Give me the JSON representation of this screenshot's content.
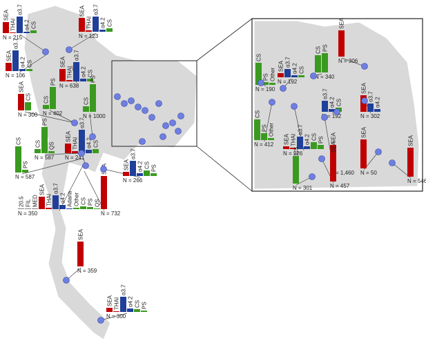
{
  "sites": [
    {
      "n": "N = 215",
      "bars": [
        {
          "label": "SEA",
          "value": 16,
          "color": "#c00000"
        },
        {
          "label": "THAI",
          "value": 1,
          "color": "#c00000"
        },
        {
          "label": "α3.7",
          "value": 24,
          "color": "#1f3f99"
        },
        {
          "label": "α4.2",
          "value": 2,
          "color": "#1f3f99"
        },
        {
          "label": "CS",
          "value": 4,
          "color": "#3a9a1f"
        }
      ]
    },
    {
      "n": "N = 123",
      "bars": [
        {
          "label": "SEA",
          "value": 20,
          "color": "#c00000"
        },
        {
          "label": "THAI",
          "value": 2,
          "color": "#c00000"
        },
        {
          "label": "α3.7",
          "value": 22,
          "color": "#1f3f99"
        },
        {
          "label": "α4.2",
          "value": 3,
          "color": "#1f3f99"
        },
        {
          "label": "CS",
          "value": 5,
          "color": "#3a9a1f"
        }
      ]
    },
    {
      "n": "N = 106",
      "bars": [
        {
          "label": "SEA",
          "value": 12,
          "color": "#c00000"
        },
        {
          "label": "α3.7",
          "value": 30,
          "color": "#1f3f99"
        },
        {
          "label": "α4.2",
          "value": 3,
          "color": "#1f3f99"
        },
        {
          "label": "CS",
          "value": 3,
          "color": "#3a9a1f"
        }
      ]
    },
    {
      "n": "N = 638",
      "bars": [
        {
          "label": "SEA",
          "value": 18,
          "color": "#c00000"
        },
        {
          "label": "THAI",
          "value": 2,
          "color": "#c00000"
        },
        {
          "label": "α3.7",
          "value": 28,
          "color": "#1f3f99"
        },
        {
          "label": "α4.2",
          "value": 4,
          "color": "#1f3f99"
        },
        {
          "label": "CS",
          "value": 4,
          "color": "#3a9a1f"
        }
      ]
    },
    {
      "n": "N = 402",
      "bars": [
        {
          "label": "CS",
          "value": 6,
          "color": "#3a9a1f"
        },
        {
          "label": "PS",
          "value": 32,
          "color": "#3a9a1f"
        }
      ]
    },
    {
      "n": "N = 300",
      "bars": [
        {
          "label": "SEA",
          "value": 24,
          "color": "#c00000"
        },
        {
          "label": "CS",
          "value": 12,
          "color": "#3a9a1f"
        }
      ]
    },
    {
      "n": "N = 1000",
      "bars": [
        {
          "label": "CS",
          "value": 8,
          "color": "#3a9a1f"
        },
        {
          "label": "PS",
          "value": 40,
          "color": "#3a9a1f"
        }
      ]
    },
    {
      "n": "N = 587",
      "bars": [
        {
          "label": "CS",
          "value": 6,
          "color": "#3a9a1f"
        },
        {
          "label": "PS",
          "value": 38,
          "color": "#3a9a1f"
        },
        {
          "label": "QS",
          "value": 3,
          "color": "#3a9a1f"
        }
      ]
    },
    {
      "n": "N = 587",
      "bars": [
        {
          "label": "CS",
          "value": 38,
          "color": "#3a9a1f"
        },
        {
          "label": "PS",
          "value": 4,
          "color": "#3a9a1f"
        }
      ]
    },
    {
      "n": "N = 241",
      "bars": [
        {
          "label": "SEA",
          "value": 14,
          "color": "#c00000"
        },
        {
          "label": "THAI",
          "value": 3,
          "color": "#c00000"
        },
        {
          "label": "α3.7",
          "value": 34,
          "color": "#1f3f99"
        },
        {
          "label": "α4.2",
          "value": 5,
          "color": "#1f3f99"
        },
        {
          "label": "CS",
          "value": 6,
          "color": "#3a9a1f"
        }
      ]
    },
    {
      "n": "N = 266",
      "bars": [
        {
          "label": "SEA",
          "value": 6,
          "color": "#c00000"
        },
        {
          "label": "α3.7",
          "value": 22,
          "color": "#1f3f99"
        },
        {
          "label": "α4.2",
          "value": 4,
          "color": "#1f3f99"
        },
        {
          "label": "CS",
          "value": 8,
          "color": "#3a9a1f"
        },
        {
          "label": "PS",
          "value": 4,
          "color": "#3a9a1f"
        }
      ]
    },
    {
      "n": "N = 350",
      "bars": [
        {
          "label": "20.5",
          "value": 1,
          "color": "#7f7f7f"
        },
        {
          "label": "FIL",
          "value": 1,
          "color": "#7f7f7f"
        },
        {
          "label": "MED",
          "value": 1,
          "color": "#7f7f7f"
        },
        {
          "label": "SEA",
          "value": 18,
          "color": "#c00000"
        },
        {
          "label": "THAI",
          "value": 2,
          "color": "#c00000"
        },
        {
          "label": "α3.7",
          "value": 20,
          "color": "#1f3f99"
        },
        {
          "label": "α4.2",
          "value": 6,
          "color": "#1f3f99"
        },
        {
          "label": "Adana",
          "value": 1,
          "color": "#1f3f99"
        },
        {
          "label": "Other",
          "value": 2,
          "color": "#3a9a1f"
        },
        {
          "label": "CS",
          "value": 4,
          "color": "#3a9a1f"
        },
        {
          "label": "PS",
          "value": 3,
          "color": "#3a9a1f"
        },
        {
          "label": "QS",
          "value": 1,
          "color": "#3a9a1f"
        }
      ]
    },
    {
      "n": "N = 732",
      "bars": [
        {
          "label": "SEA",
          "value": 48,
          "color": "#c00000"
        }
      ]
    },
    {
      "n": "N = 359",
      "bars": [
        {
          "label": "SEA",
          "value": 36,
          "color": "#c00000"
        }
      ]
    },
    {
      "n": "N = 300",
      "bars": [
        {
          "label": "SEA",
          "value": 6,
          "color": "#c00000"
        },
        {
          "label": "THAI",
          "value": 1,
          "color": "#c00000"
        },
        {
          "label": "α3.7",
          "value": 22,
          "color": "#1f3f99"
        },
        {
          "label": "α4.2",
          "value": 5,
          "color": "#1f3f99"
        },
        {
          "label": "CS",
          "value": 4,
          "color": "#3a9a1f"
        },
        {
          "label": "PS",
          "value": 2,
          "color": "#3a9a1f"
        }
      ]
    },
    {
      "n": "N = 306",
      "bars": [
        {
          "label": "SEA",
          "value": 38,
          "color": "#c00000"
        }
      ]
    },
    {
      "n": "N = 190",
      "bars": [
        {
          "label": "CS",
          "value": 32,
          "color": "#3a9a1f"
        },
        {
          "label": "PS",
          "value": 4,
          "color": "#3a9a1f"
        },
        {
          "label": "Other",
          "value": 3,
          "color": "#3a9a1f"
        }
      ]
    },
    {
      "n": "N = 192",
      "bars": [
        {
          "label": "SEA",
          "value": 6,
          "color": "#c00000"
        },
        {
          "label": "α3.7",
          "value": 12,
          "color": "#1f3f99"
        },
        {
          "label": "α4.2",
          "value": 3,
          "color": "#1f3f99"
        },
        {
          "label": "CS",
          "value": 3,
          "color": "#3a9a1f"
        }
      ]
    },
    {
      "n": "N = 340",
      "bars": [
        {
          "label": "CS",
          "value": 25,
          "color": "#3a9a1f"
        },
        {
          "label": "PS",
          "value": 28,
          "color": "#3a9a1f"
        }
      ]
    },
    {
      "n": "N = 192",
      "bars": [
        {
          "label": "α3.7",
          "value": 16,
          "color": "#1f3f99"
        },
        {
          "label": "α4.2",
          "value": 4,
          "color": "#1f3f99"
        },
        {
          "label": "CS",
          "value": 6,
          "color": "#3a9a1f"
        }
      ]
    },
    {
      "n": "N = 302",
      "bars": [
        {
          "label": "SEA",
          "value": 24,
          "color": "#c00000"
        },
        {
          "label": "α3.7",
          "value": 12,
          "color": "#1f3f99"
        },
        {
          "label": "α4.2",
          "value": 4,
          "color": "#1f3f99"
        }
      ]
    },
    {
      "n": "N = 412",
      "bars": [
        {
          "label": "CS",
          "value": 30,
          "color": "#3a9a1f"
        },
        {
          "label": "PS",
          "value": 10,
          "color": "#3a9a1f"
        },
        {
          "label": "Other",
          "value": 3,
          "color": "#3a9a1f"
        }
      ]
    },
    {
      "n": "N = 226",
      "bars": [
        {
          "label": "SEA",
          "value": 4,
          "color": "#c00000"
        },
        {
          "label": "THAI",
          "value": 2,
          "color": "#c00000"
        },
        {
          "label": "α3.7",
          "value": 18,
          "color": "#1f3f99"
        },
        {
          "label": "α4.2",
          "value": 4,
          "color": "#1f3f99"
        },
        {
          "label": "CS",
          "value": 10,
          "color": "#3a9a1f"
        },
        {
          "label": "PS",
          "value": 6,
          "color": "#3a9a1f"
        }
      ]
    },
    {
      "n": "N = 1,460",
      "bars": [
        {
          "label": "SEA",
          "value": 34,
          "color": "#c00000"
        }
      ]
    },
    {
      "n": "N = 50",
      "bars": [
        {
          "label": "SEA",
          "value": 42,
          "color": "#c00000"
        }
      ]
    },
    {
      "n": "N = 546",
      "bars": [
        {
          "label": "SEA",
          "value": 42,
          "color": "#c00000"
        }
      ]
    },
    {
      "n": "N = 301",
      "bars": [
        {
          "label": "CS",
          "value": 40,
          "color": "#3a9a1f"
        }
      ]
    },
    {
      "n": "N = 457",
      "bars": [
        {
          "label": "SEA",
          "value": 40,
          "color": "#c00000"
        }
      ]
    }
  ]
}
